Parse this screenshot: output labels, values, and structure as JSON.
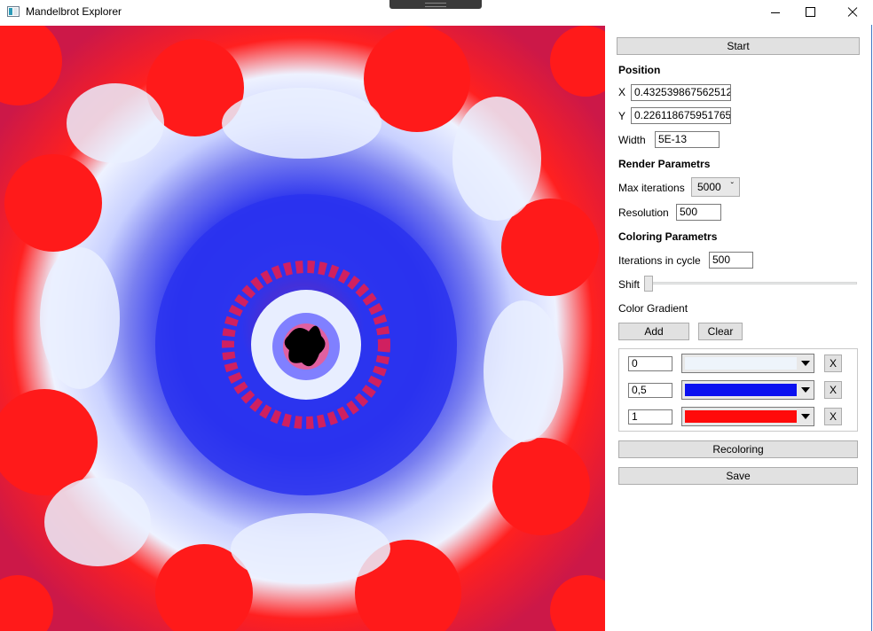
{
  "window": {
    "title": "Mandelbrot Explorer"
  },
  "buttons": {
    "start": "Start",
    "add": "Add",
    "clear": "Clear",
    "recoloring": "Recoloring",
    "save": "Save"
  },
  "position": {
    "header": "Position",
    "x_label": "X",
    "x_value": "0.432539867562512",
    "y_label": "Y",
    "y_value": "0.226118675951765",
    "width_label": "Width",
    "width_value": "5E-13"
  },
  "render": {
    "header": "Render Parametrs",
    "max_iterations_label": "Max iterations",
    "max_iterations_value": "5000",
    "resolution_label": "Resolution",
    "resolution_value": "500"
  },
  "coloring": {
    "header": "Coloring Parametrs",
    "iterations_cycle_label": "Iterations in cycle",
    "iterations_cycle_value": "500",
    "shift_label": "Shift",
    "shift_value": 0,
    "gradient_label": "Color Gradient",
    "gradient": [
      {
        "position": "0",
        "color": "#eef4fb",
        "remove_label": "X"
      },
      {
        "position": "0,5",
        "color": "#0a10f0",
        "remove_label": "X"
      },
      {
        "position": "1",
        "color": "#ff0a0a",
        "remove_label": "X"
      }
    ]
  },
  "colors": {
    "fractal_bg": "#d0184a",
    "fractal_red": "#ff1a1a",
    "fractal_blue": "#2a32f0",
    "fractal_white": "#e8eeff"
  }
}
